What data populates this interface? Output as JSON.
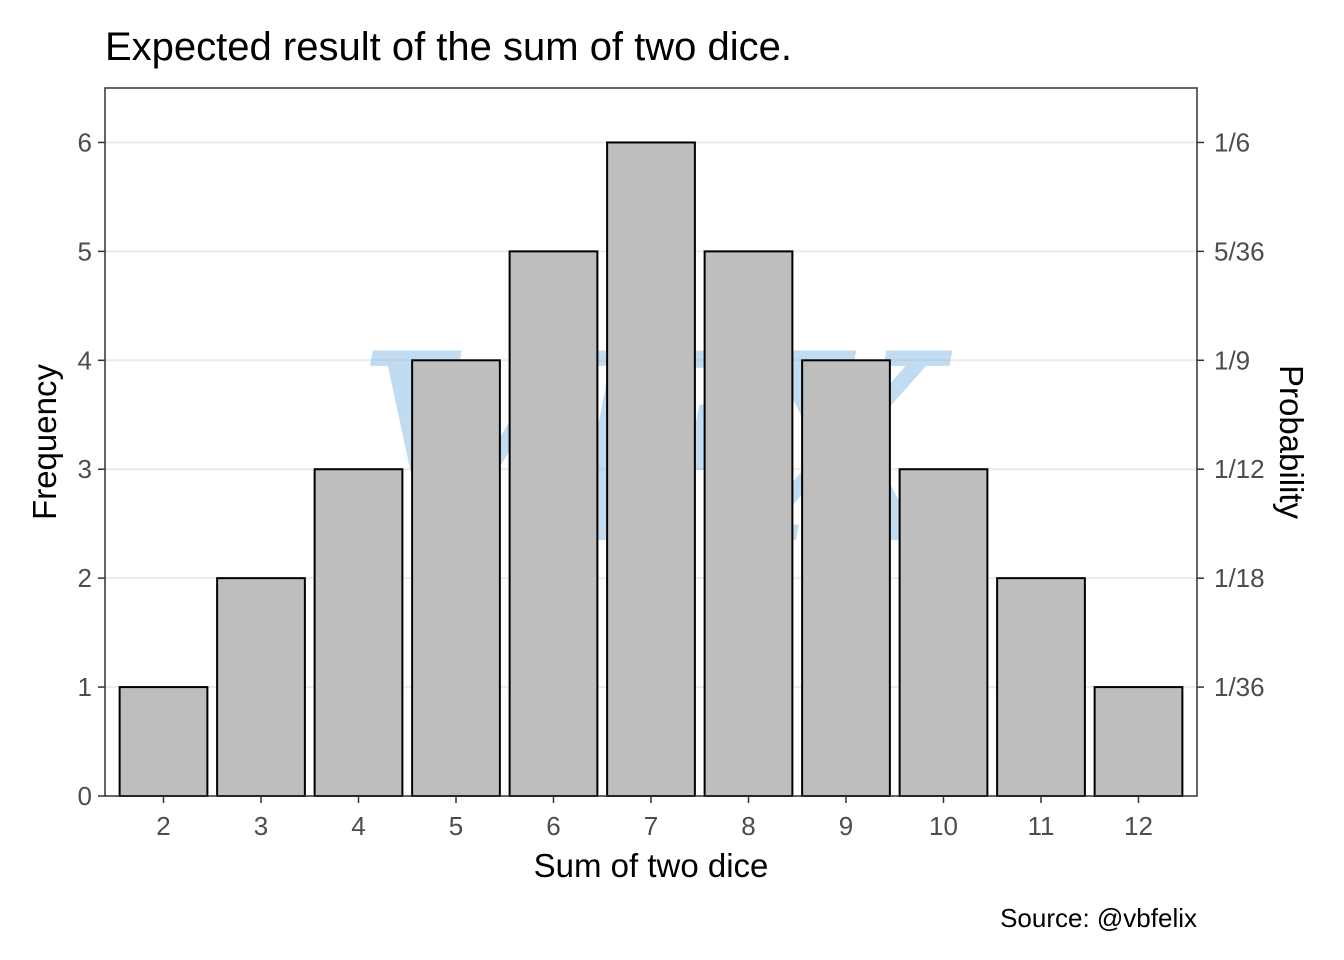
{
  "chart_data": {
    "type": "bar",
    "title": "Expected result of the sum of two dice.",
    "xlabel": "Sum of two dice",
    "ylabel": "Frequency",
    "y2label": "Probability",
    "caption": "Source: @vbfelix",
    "watermark": "VFX",
    "categories": [
      "2",
      "3",
      "4",
      "5",
      "6",
      "7",
      "8",
      "9",
      "10",
      "11",
      "12"
    ],
    "values": [
      1,
      2,
      3,
      4,
      5,
      6,
      5,
      4,
      3,
      2,
      1
    ],
    "ylim": [
      0,
      6.5
    ],
    "yticks": [
      0,
      1,
      2,
      3,
      4,
      5,
      6
    ],
    "y2ticks": [
      {
        "value": 1,
        "label": "1/36"
      },
      {
        "value": 2,
        "label": "1/18"
      },
      {
        "value": 3,
        "label": "1/12"
      },
      {
        "value": 4,
        "label": "1/9"
      },
      {
        "value": 5,
        "label": "5/36"
      },
      {
        "value": 6,
        "label": "1/6"
      }
    ],
    "grid": true,
    "colors": {
      "bar_fill": "#bebebe",
      "bar_stroke": "#000000",
      "grid": "#ebebeb",
      "panel_border": "#333333",
      "tick_text": "#4d4d4d",
      "watermark": "#8fc0e6"
    }
  }
}
